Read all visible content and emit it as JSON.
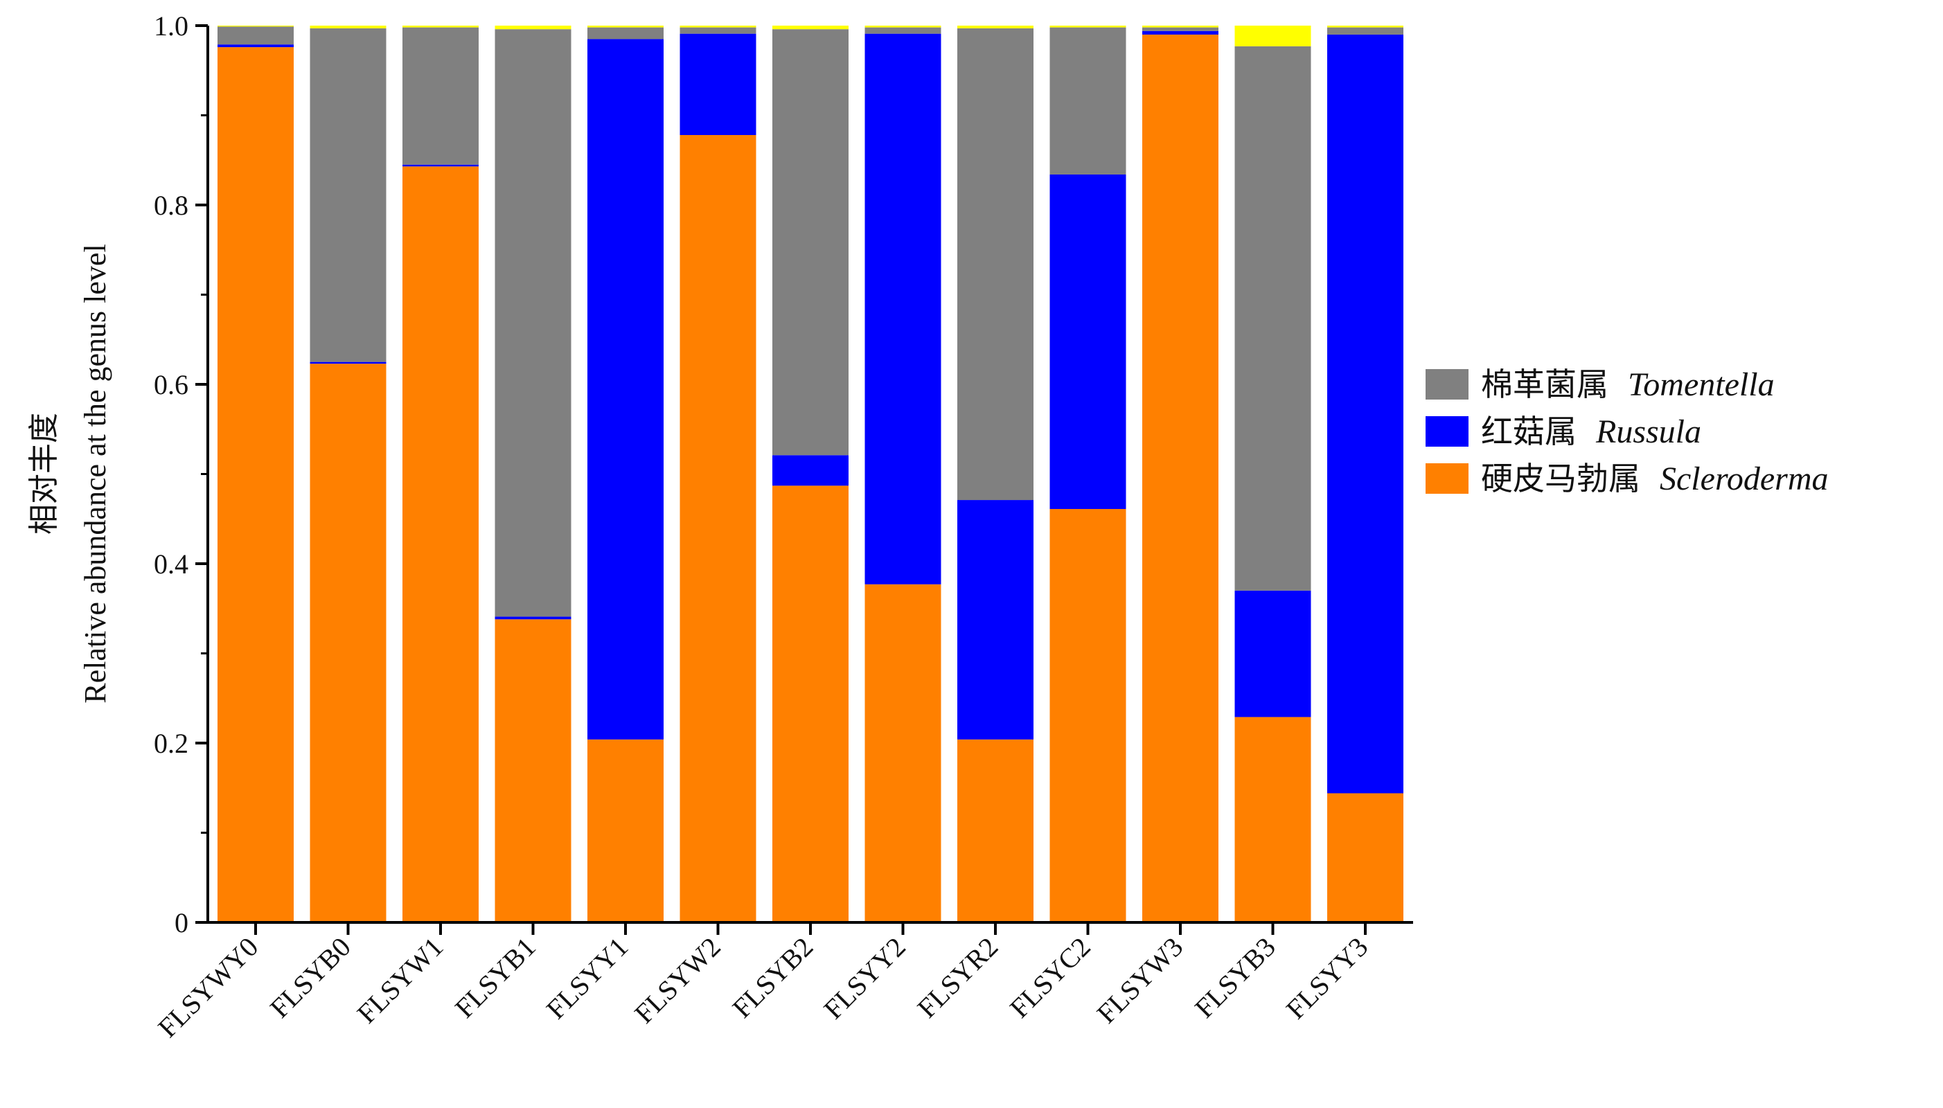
{
  "chart_data": {
    "type": "bar",
    "stacked": true,
    "title": "",
    "xlabel": "",
    "ylabel_cn": "相对丰度",
    "ylabel_en": "Relative abundance at the genus level",
    "ylim": [
      0,
      1.0
    ],
    "yticks": [
      "0",
      "0.2",
      "0.4",
      "0.6",
      "0.8",
      "1.0"
    ],
    "grid": false,
    "legend_position": "right",
    "categories": [
      "FLSYWY0",
      "FLSYB0",
      "FLSYW1",
      "FLSYB1",
      "FLSYY1",
      "FLSYW2",
      "FLSYB2",
      "FLSYY2",
      "FLSYR2",
      "FLSYC2",
      "FLSYW3",
      "FLSYB3",
      "FLSYY3"
    ],
    "series": [
      {
        "name_cn": "硬皮马勃属",
        "name_latin": "Scleroderma",
        "color": "#ff8000",
        "values": [
          0.976,
          0.623,
          0.843,
          0.338,
          0.204,
          0.878,
          0.487,
          0.377,
          0.204,
          0.461,
          0.99,
          0.229,
          0.144
        ]
      },
      {
        "name_cn": "红菇属",
        "name_latin": "Russula",
        "color": "#0000ff",
        "values": [
          0.003,
          0.002,
          0.002,
          0.003,
          0.781,
          0.113,
          0.034,
          0.614,
          0.267,
          0.373,
          0.004,
          0.141,
          0.846
        ]
      },
      {
        "name_cn": "棉革菌属",
        "name_latin": "Tomentella",
        "color": "#808080",
        "values": [
          0.02,
          0.372,
          0.153,
          0.655,
          0.013,
          0.007,
          0.475,
          0.007,
          0.526,
          0.164,
          0.004,
          0.607,
          0.008
        ]
      },
      {
        "name_cn": "",
        "name_latin": "",
        "color": "#ffff00",
        "values": [
          0.001,
          0.003,
          0.002,
          0.004,
          0.002,
          0.002,
          0.004,
          0.002,
          0.003,
          0.002,
          0.002,
          0.023,
          0.002
        ]
      }
    ],
    "legend_order": [
      2,
      1,
      0
    ]
  }
}
